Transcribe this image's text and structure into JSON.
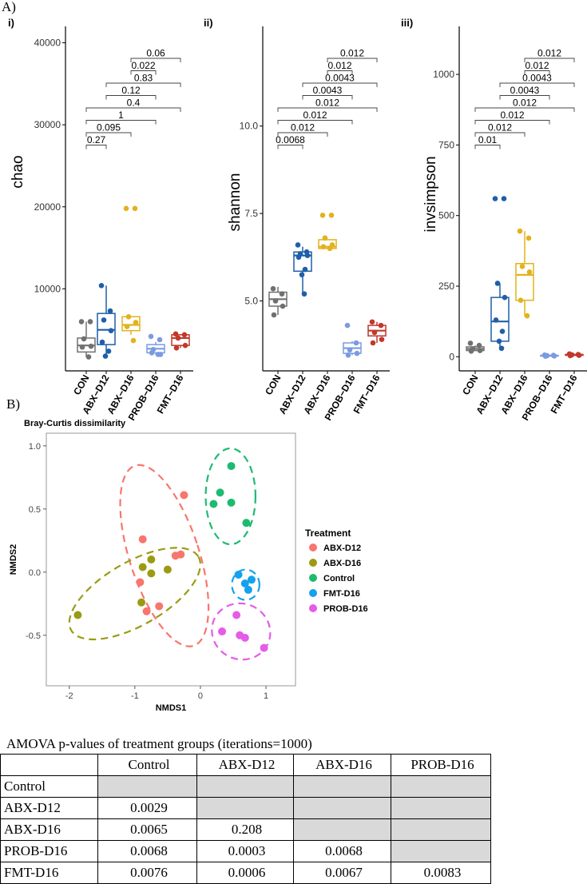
{
  "panel_labels": {
    "a": "A)",
    "b": "B)"
  },
  "chart_data": [
    {
      "type": "boxplot",
      "panel": "i)",
      "ylabel": "chao",
      "ylim": [
        0,
        42000
      ],
      "yticks": [
        10000,
        20000,
        30000,
        40000
      ],
      "categories": [
        "CON",
        "ABX−D12",
        "ABX−D16",
        "PROB−D16",
        "FMT−D16"
      ],
      "colors": [
        "#707070",
        "#1f5fa8",
        "#e3b21c",
        "#7b9be0",
        "#c0392b"
      ],
      "boxes": [
        {
          "min": 1700,
          "q1": 2300,
          "median": 3100,
          "q3": 4000,
          "max": 6000
        },
        {
          "min": 1800,
          "q1": 3200,
          "median": 5000,
          "q3": 7000,
          "max": 10400
        },
        {
          "min": 4400,
          "q1": 4900,
          "median": 5600,
          "q3": 6600,
          "max": 6600
        },
        {
          "min": 2000,
          "q1": 2200,
          "median": 2700,
          "q3": 3200,
          "max": 3500
        },
        {
          "min": 2800,
          "q1": 3100,
          "median": 4000,
          "q3": 4400,
          "max": 4500
        }
      ],
      "points": [
        [
          6000,
          6000,
          3900,
          3000,
          2900,
          1700
        ],
        [
          10400,
          7300,
          6200,
          4900,
          3500,
          2400,
          1800
        ],
        [
          19800,
          19800,
          6600,
          5900,
          5400,
          3700
        ],
        [
          4200,
          3800,
          2600,
          2000,
          2200,
          2000
        ],
        [
          4500,
          4400,
          4000,
          3100,
          2800
        ]
      ],
      "comparisons": [
        {
          "a": 0,
          "b": 1,
          "p": "0.27"
        },
        {
          "a": 0,
          "b": 2,
          "p": "0.095"
        },
        {
          "a": 0,
          "b": 3,
          "p": "1"
        },
        {
          "a": 0,
          "b": 4,
          "p": "0.4"
        },
        {
          "a": 1,
          "b": 3,
          "p": "0.12"
        },
        {
          "a": 1,
          "b": 4,
          "p": "0.83"
        },
        {
          "a": 2,
          "b": 3,
          "p": "0.022"
        },
        {
          "a": 2,
          "b": 4,
          "p": "0.06"
        }
      ]
    },
    {
      "type": "boxplot",
      "panel": "ii)",
      "ylabel": "shannon",
      "ylim": [
        3.0,
        12.85
      ],
      "yticks": [
        5.0,
        7.5,
        10.0
      ],
      "ytick_labels": [
        "5.0",
        "7.5",
        "10.0"
      ],
      "categories": [
        "CON",
        "ABX−D12",
        "ABX−D16",
        "PROB−D16",
        "FMT−D16"
      ],
      "colors": [
        "#707070",
        "#1f5fa8",
        "#e3b21c",
        "#7b9be0",
        "#c0392b"
      ],
      "boxes": [
        {
          "min": 4.6,
          "q1": 4.85,
          "median": 5.05,
          "q3": 5.25,
          "max": 5.4
        },
        {
          "min": 5.2,
          "q1": 5.85,
          "median": 6.3,
          "q3": 6.4,
          "max": 6.55
        },
        {
          "min": 6.5,
          "q1": 6.5,
          "median": 6.55,
          "q3": 6.75,
          "max": 6.75
        },
        {
          "min": 3.45,
          "q1": 3.5,
          "median": 3.65,
          "q3": 3.8,
          "max": 3.85
        },
        {
          "min": 3.8,
          "q1": 4.0,
          "median": 4.15,
          "q3": 4.3,
          "max": 4.4
        }
      ],
      "points": [
        [
          5.35,
          5.2,
          5.0,
          4.85,
          4.6
        ],
        [
          6.6,
          6.4,
          6.35,
          6.3,
          6.25,
          5.9,
          5.75,
          5.2
        ],
        [
          7.45,
          7.45,
          6.8,
          6.6,
          6.55,
          6.5
        ],
        [
          4.3,
          3.8,
          3.6,
          3.5,
          3.45
        ],
        [
          4.4,
          4.3,
          4.1,
          3.9,
          3.8
        ]
      ],
      "comparisons": [
        {
          "a": 0,
          "b": 1,
          "p": "0.0068"
        },
        {
          "a": 0,
          "b": 2,
          "p": "0.012"
        },
        {
          "a": 0,
          "b": 3,
          "p": "0.012"
        },
        {
          "a": 0,
          "b": 4,
          "p": "0.012"
        },
        {
          "a": 1,
          "b": 3,
          "p": "0.0043"
        },
        {
          "a": 1,
          "b": 4,
          "p": "0.0043"
        },
        {
          "a": 2,
          "b": 3,
          "p": "0.012"
        },
        {
          "a": 2,
          "b": 4,
          "p": "0.012"
        }
      ]
    },
    {
      "type": "boxplot",
      "panel": "iii)",
      "ylabel": "invsimpson",
      "ylim": [
        -50,
        1170
      ],
      "yticks": [
        0,
        250,
        500,
        750,
        1000
      ],
      "categories": [
        "CON",
        "ABX−D12",
        "ABX−D16",
        "PROB−D16",
        "FMT−D16"
      ],
      "colors": [
        "#707070",
        "#1f5fa8",
        "#e3b21c",
        "#7b9be0",
        "#c0392b"
      ],
      "boxes": [
        {
          "min": 20,
          "q1": 22,
          "median": 28,
          "q3": 35,
          "max": 40
        },
        {
          "min": 30,
          "q1": 55,
          "median": 125,
          "q3": 210,
          "max": 260
        },
        {
          "min": 145,
          "q1": 200,
          "median": 290,
          "q3": 330,
          "max": 445
        },
        {
          "min": 2,
          "q1": 3,
          "median": 4,
          "q3": 5,
          "max": 6
        },
        {
          "min": 4,
          "q1": 5,
          "median": 7,
          "q3": 8,
          "max": 10
        }
      ],
      "points": [
        [
          48,
          40,
          28,
          22,
          20
        ],
        [
          560,
          560,
          260,
          210,
          130,
          90,
          55,
          30
        ],
        [
          445,
          420,
          320,
          300,
          200,
          145
        ],
        [
          6,
          5,
          4,
          3,
          2
        ],
        [
          10,
          8,
          7,
          5,
          4
        ]
      ],
      "comparisons": [
        {
          "a": 0,
          "b": 1,
          "p": "0.01"
        },
        {
          "a": 0,
          "b": 2,
          "p": "0.012"
        },
        {
          "a": 0,
          "b": 3,
          "p": "0.012"
        },
        {
          "a": 0,
          "b": 4,
          "p": "0.012"
        },
        {
          "a": 1,
          "b": 3,
          "p": "0.0043"
        },
        {
          "a": 1,
          "b": 4,
          "p": "0.0043"
        },
        {
          "a": 2,
          "b": 3,
          "p": "0.012"
        },
        {
          "a": 2,
          "b": 4,
          "p": "0.012"
        }
      ]
    },
    {
      "type": "scatter",
      "title": "Bray-Curtis dissimilarity",
      "xlabel": "NMDS1",
      "ylabel": "NMDS2",
      "xlim": [
        -2.35,
        1.45
      ],
      "ylim": [
        -0.9,
        1.1
      ],
      "xticks": [
        -2,
        -1,
        0,
        1
      ],
      "yticks": [
        -0.5,
        0.0,
        0.5,
        1.0
      ],
      "ytick_labels": [
        "-0.5",
        "0.0",
        "0.5",
        "1.0"
      ],
      "legend_title": "Treatment",
      "series": [
        {
          "name": "ABX-D12",
          "color": "#f8766d",
          "x": [
            -0.25,
            -0.88,
            -0.38,
            -0.3,
            -0.92,
            -0.82,
            -0.63
          ],
          "y": [
            0.61,
            0.26,
            0.13,
            0.14,
            -0.08,
            -0.31,
            -0.27
          ],
          "ellipse": {
            "cx": -0.55,
            "cy": 0.13,
            "rx": 0.53,
            "ry": 0.75,
            "angle": 18
          }
        },
        {
          "name": "ABX-D16",
          "color": "#9a9b12",
          "x": [
            -0.75,
            -0.88,
            -0.5,
            -0.75,
            -0.9,
            -1.87
          ],
          "y": [
            0.1,
            0.04,
            0.02,
            -0.01,
            -0.24,
            -0.34
          ],
          "ellipse": {
            "cx": -1.0,
            "cy": -0.17,
            "rx": 1.12,
            "ry": 0.25,
            "angle": 30
          }
        },
        {
          "name": "Control",
          "color": "#1dbb6f",
          "x": [
            0.47,
            0.3,
            0.2,
            0.47,
            0.7
          ],
          "y": [
            0.84,
            0.63,
            0.54,
            0.55,
            0.39
          ],
          "ellipse": {
            "cx": 0.46,
            "cy": 0.6,
            "rx": 0.38,
            "ry": 0.38,
            "angle": 0
          }
        },
        {
          "name": "FMT-D16",
          "color": "#14a2ec",
          "x": [
            0.58,
            0.78,
            0.68,
            0.73
          ],
          "y": [
            -0.02,
            -0.06,
            -0.09,
            -0.14
          ],
          "ellipse": {
            "cx": 0.69,
            "cy": -0.1,
            "rx": 0.21,
            "ry": 0.12,
            "angle": 0
          }
        },
        {
          "name": "PROB-D16",
          "color": "#e55ce8",
          "x": [
            0.55,
            0.33,
            0.6,
            0.68,
            0.97
          ],
          "y": [
            -0.34,
            -0.47,
            -0.5,
            -0.52,
            -0.6
          ],
          "ellipse": {
            "cx": 0.62,
            "cy": -0.47,
            "rx": 0.45,
            "ry": 0.22,
            "angle": -25
          }
        }
      ]
    }
  ],
  "amova": {
    "title": "AMOVA p-values of treatment groups (iterations=1000)",
    "header": [
      "",
      "Control",
      "ABX-D12",
      "ABX-D16",
      "PROB-D16"
    ],
    "rows": [
      {
        "label": "Control",
        "values": [
          "",
          "",
          "",
          ""
        ]
      },
      {
        "label": "ABX-D12",
        "values": [
          "0.0029",
          "",
          "",
          ""
        ]
      },
      {
        "label": "ABX-D16",
        "values": [
          "0.0065",
          "0.208",
          "",
          ""
        ]
      },
      {
        "label": "PROB-D16",
        "values": [
          "0.0068",
          "0.0003",
          "0.0068",
          ""
        ]
      },
      {
        "label": "FMT-D16",
        "values": [
          "0.0076",
          "0.0006",
          "0.0067",
          "0.0083"
        ]
      }
    ]
  }
}
